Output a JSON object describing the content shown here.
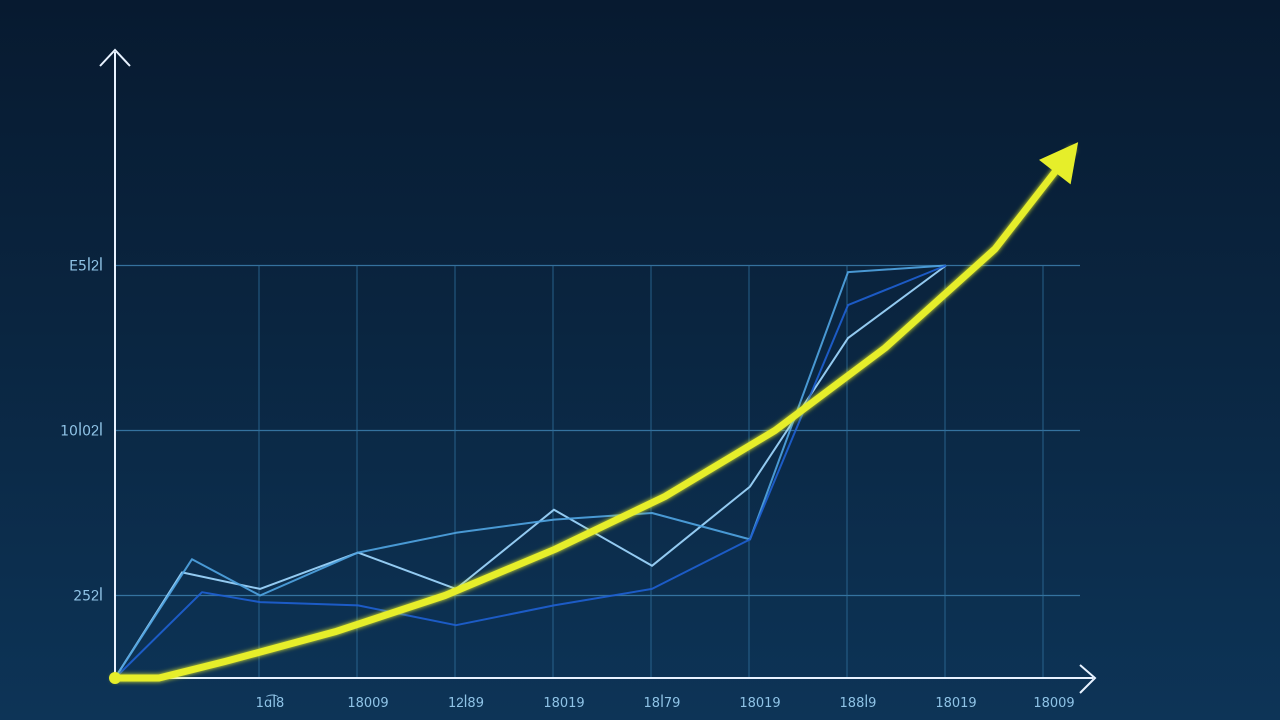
{
  "chart_data": {
    "type": "line",
    "title": "",
    "xlabel": "",
    "ylabel": "",
    "categories": [
      "1ɑ͡ꟾ8",
      "18009",
      "1ᒿꟾ89",
      "18019",
      "18ꟾ79",
      "18019",
      "188ꟾ9",
      "18019",
      "18009"
    ],
    "y_ticks": [
      {
        "value": 25,
        "label": "25ᒿꟾ"
      },
      {
        "value": 75,
        "label": "10ꟾ0ᒿꟾ"
      },
      {
        "value": 125,
        "label": "E5ꟾᒿꟾ"
      }
    ],
    "ylim": [
      0,
      165
    ],
    "grid": true,
    "legend": "none",
    "series": [
      {
        "color": "#9fd8ff",
        "values": [
          32,
          27,
          38,
          27,
          51,
          34,
          58,
          103,
          125
        ]
      },
      {
        "color": "#4fa3e0",
        "values": [
          36,
          25,
          38,
          44,
          48,
          50,
          42,
          123,
          125
        ]
      },
      {
        "color": "#1e5fd0",
        "values": [
          26,
          23,
          22,
          16,
          22,
          27,
          42,
          113,
          125
        ]
      }
    ],
    "trend": {
      "color": "#e6ee2a",
      "points": [
        [
          0.4,
          0
        ],
        [
          1,
          5
        ],
        [
          2,
          14
        ],
        [
          3,
          25
        ],
        [
          4,
          39
        ],
        [
          5,
          55
        ],
        [
          6,
          75
        ],
        [
          7,
          100
        ],
        [
          8,
          130
        ],
        [
          8.7,
          160
        ]
      ]
    }
  }
}
